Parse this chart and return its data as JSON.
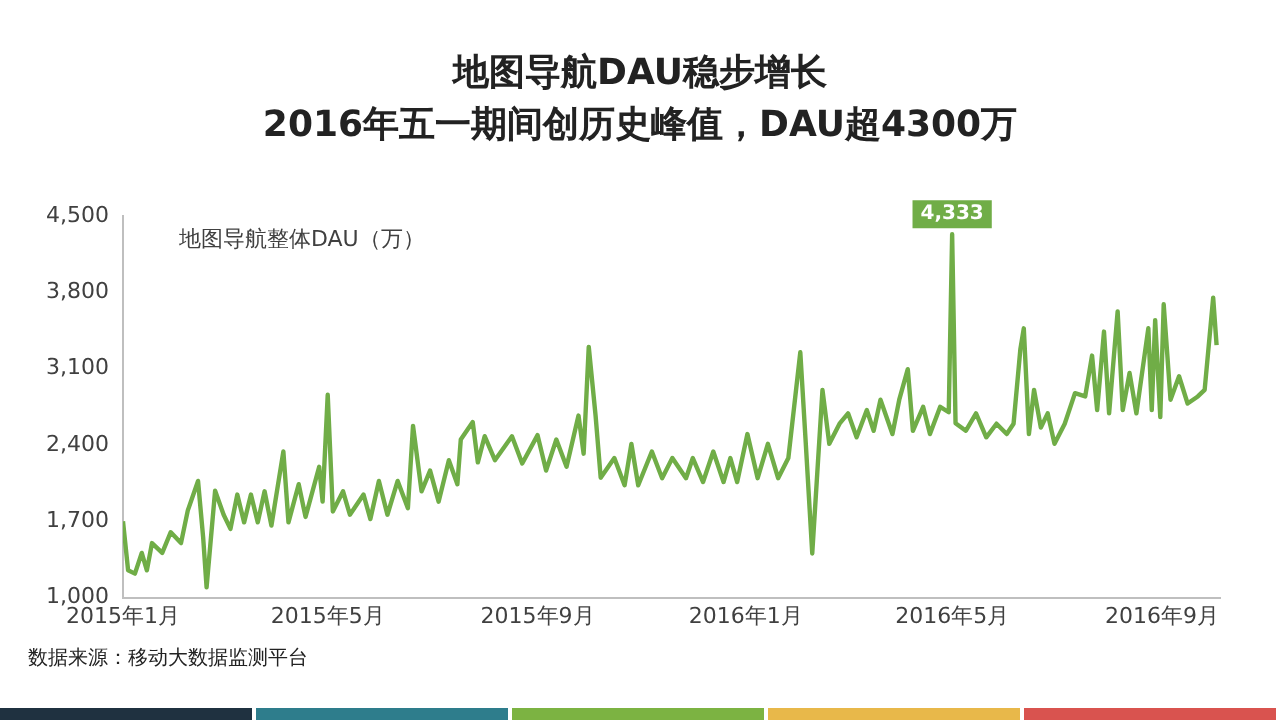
{
  "chart_data": {
    "type": "line",
    "title": "地图导航DAU稳步增长",
    "subtitle": "2016年五一期间创历史峰值，DAU超4300万",
    "ylabel": "地图导航整体DAU（万）",
    "annotations": [
      {
        "text": "4,333",
        "x": "2016-05-01",
        "y": 4333
      },
      "数据来源：移动大数据监测平台"
    ],
    "x": [
      "2015-01-01",
      "2015-01-04",
      "2015-01-08",
      "2015-01-12",
      "2015-01-15",
      "2015-01-18",
      "2015-01-24",
      "2015-01-29",
      "2015-02-04",
      "2015-02-08",
      "2015-02-14",
      "2015-02-17",
      "2015-02-19",
      "2015-02-24",
      "2015-03-01",
      "2015-03-05",
      "2015-03-09",
      "2015-03-13",
      "2015-03-17",
      "2015-03-21",
      "2015-03-25",
      "2015-03-29",
      "2015-04-05",
      "2015-04-08",
      "2015-04-14",
      "2015-04-18",
      "2015-04-26",
      "2015-04-28",
      "2015-05-01",
      "2015-05-04",
      "2015-05-10",
      "2015-05-14",
      "2015-05-22",
      "2015-05-26",
      "2015-05-31",
      "2015-06-05",
      "2015-06-11",
      "2015-06-17",
      "2015-06-20",
      "2015-06-25",
      "2015-06-30",
      "2015-07-05",
      "2015-07-11",
      "2015-07-16",
      "2015-07-18",
      "2015-07-25",
      "2015-07-28",
      "2015-08-01",
      "2015-08-07",
      "2015-08-17",
      "2015-08-23",
      "2015-09-01",
      "2015-09-06",
      "2015-09-12",
      "2015-09-18",
      "2015-09-25",
      "2015-09-28",
      "2015-10-01",
      "2015-10-05",
      "2015-10-08",
      "2015-10-16",
      "2015-10-22",
      "2015-10-26",
      "2015-10-30",
      "2015-11-07",
      "2015-11-13",
      "2015-11-19",
      "2015-11-27",
      "2015-12-01",
      "2015-12-07",
      "2015-12-13",
      "2015-12-19",
      "2015-12-23",
      "2015-12-27",
      "2016-01-02",
      "2016-01-08",
      "2016-01-14",
      "2016-01-20",
      "2016-01-26",
      "2016-02-02",
      "2016-02-05",
      "2016-02-09",
      "2016-02-15",
      "2016-02-19",
      "2016-02-25",
      "2016-03-01",
      "2016-03-06",
      "2016-03-12",
      "2016-03-16",
      "2016-03-20",
      "2016-03-27",
      "2016-03-31",
      "2016-04-05",
      "2016-04-08",
      "2016-04-14",
      "2016-04-18",
      "2016-04-24",
      "2016-04-29",
      "2016-05-01",
      "2016-05-03",
      "2016-05-09",
      "2016-05-15",
      "2016-05-21",
      "2016-05-27",
      "2016-06-02",
      "2016-06-06",
      "2016-06-10",
      "2016-06-12",
      "2016-06-15",
      "2016-06-18",
      "2016-06-22",
      "2016-06-26",
      "2016-06-30",
      "2016-07-06",
      "2016-07-12",
      "2016-07-18",
      "2016-07-22",
      "2016-07-25",
      "2016-07-29",
      "2016-08-01",
      "2016-08-06",
      "2016-08-09",
      "2016-08-13",
      "2016-08-17",
      "2016-08-24",
      "2016-08-26",
      "2016-08-28",
      "2016-08-31",
      "2016-09-02",
      "2016-09-06",
      "2016-09-11",
      "2016-09-16",
      "2016-09-22",
      "2016-09-26",
      "2016-10-01",
      "2016-10-03"
    ],
    "series": [
      {
        "color": "#70ad47",
        "values": [
          1700,
          1250,
          1220,
          1410,
          1250,
          1500,
          1410,
          1600,
          1500,
          1800,
          2070,
          1550,
          1095,
          1980,
          1760,
          1630,
          1945,
          1690,
          1945,
          1690,
          1975,
          1660,
          2340,
          1690,
          2040,
          1740,
          2200,
          1880,
          2860,
          1790,
          1975,
          1760,
          1945,
          1720,
          2070,
          1760,
          2070,
          1820,
          2575,
          1975,
          2165,
          1880,
          2260,
          2040,
          2450,
          2610,
          2240,
          2480,
          2260,
          2480,
          2230,
          2490,
          2165,
          2450,
          2200,
          2670,
          2320,
          3300,
          2670,
          2100,
          2280,
          2030,
          2410,
          2030,
          2340,
          2095,
          2280,
          2095,
          2280,
          2060,
          2340,
          2060,
          2280,
          2060,
          2500,
          2095,
          2410,
          2095,
          2280,
          3250,
          2470,
          1405,
          2905,
          2410,
          2595,
          2690,
          2470,
          2720,
          2530,
          2815,
          2500,
          2815,
          3095,
          2530,
          2750,
          2500,
          2750,
          2700,
          4333,
          2600,
          2530,
          2690,
          2470,
          2595,
          2500,
          2595,
          3280,
          3470,
          2500,
          2905,
          2560,
          2690,
          2410,
          2595,
          2875,
          2845,
          3220,
          2720,
          3440,
          2690,
          3625,
          2720,
          3060,
          2690,
          3470,
          2720,
          3545,
          2655,
          3690,
          2815,
          3030,
          2780,
          2845,
          2905,
          3750,
          3315
        ]
      }
    ],
    "xlim": [
      "2015-01-01",
      "2016-10-05"
    ],
    "xticks": [
      {
        "value": "2015-01-01",
        "label": "2015年1月"
      },
      {
        "value": "2015-05-01",
        "label": "2015年5月"
      },
      {
        "value": "2015-09-01",
        "label": "2015年9月"
      },
      {
        "value": "2016-01-01",
        "label": "2016年1月"
      },
      {
        "value": "2016-05-01",
        "label": "2016年5月"
      },
      {
        "value": "2016-09-01",
        "label": "2016年9月"
      }
    ],
    "ylim": [
      1000,
      4500
    ],
    "yticks": [
      {
        "value": 1000,
        "label": "1,000"
      },
      {
        "value": 1700,
        "label": "1,700"
      },
      {
        "value": 2400,
        "label": "2,400"
      },
      {
        "value": 3100,
        "label": "3,100"
      },
      {
        "value": 3800,
        "label": "3,800"
      },
      {
        "value": 4500,
        "label": "4,500"
      }
    ],
    "grid": false,
    "legend": false,
    "marker": "none",
    "line_style": "solid"
  }
}
